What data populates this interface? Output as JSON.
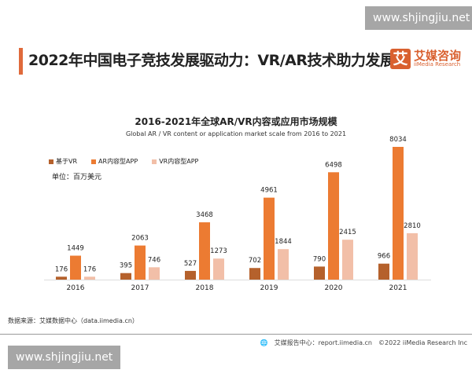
{
  "watermark": "www.shjingjiu.net",
  "title": "2022年中国电子竞技发展驱动力：VR/AR技术助力发展",
  "logo": {
    "mark": "艾",
    "cn": "艾媒咨询",
    "en": "iiMedia Research",
    "color": "#d9602f"
  },
  "chart_data": {
    "type": "bar",
    "title": "2016-2021年全球AR/VR内容或应用市场规模",
    "subtitle": "Global AR / VR content or application market scale from 2016 to 2021",
    "unit": "单位：百万美元",
    "categories": [
      "2016",
      "2017",
      "2018",
      "2019",
      "2020",
      "2021"
    ],
    "series": [
      {
        "name": "基于VR",
        "color": "#b5612c",
        "values": [
          176,
          395,
          527,
          702,
          790,
          966
        ]
      },
      {
        "name": "AR内容型APP",
        "color": "#ec7b32",
        "values": [
          1449,
          2063,
          3468,
          4961,
          6498,
          8034
        ]
      },
      {
        "name": "VR内容型APP",
        "color": "#f2bfa8",
        "values": [
          176,
          746,
          1273,
          1844,
          2415,
          2810
        ]
      }
    ],
    "legend_position": "top-left",
    "grid": false
  },
  "source": "数据来源：艾媒数据中心（data.iimedia.cn）",
  "footer": {
    "report": "艾媒报告中心：report.iimedia.cn",
    "copyright": "©2022  iiMedia Research  Inc"
  }
}
